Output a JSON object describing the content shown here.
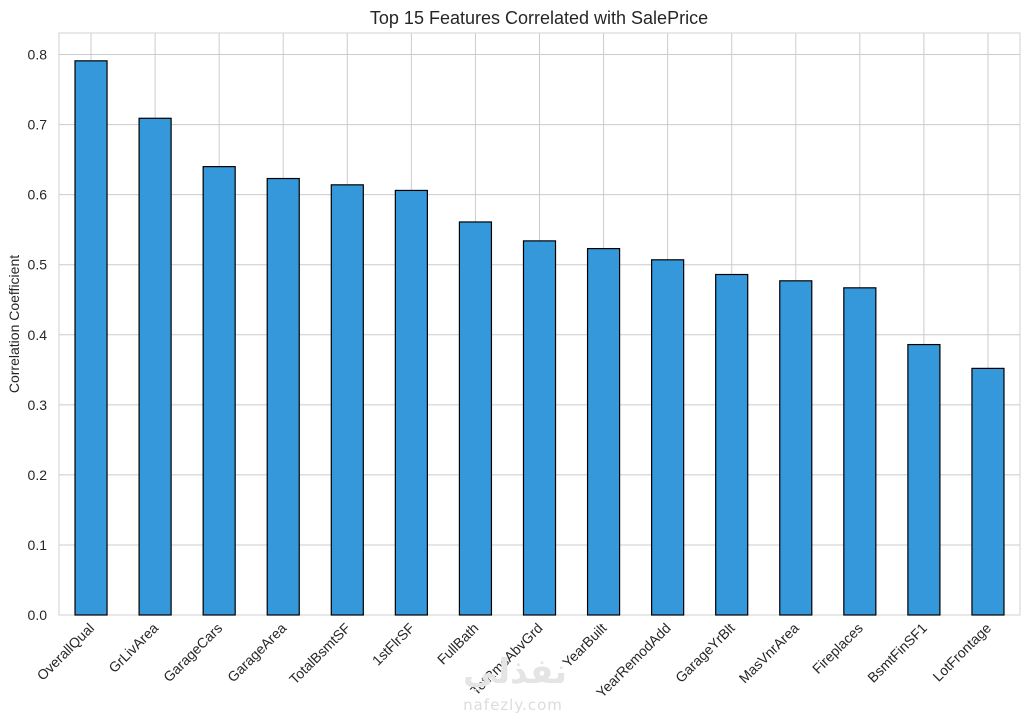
{
  "chart_data": {
    "type": "bar",
    "title": "Top 15 Features Correlated with SalePrice",
    "xlabel": "",
    "ylabel": "Correlation Coefficient",
    "ylim": [
      0,
      0.83
    ],
    "yticks": [
      "0.0",
      "0.1",
      "0.2",
      "0.3",
      "0.4",
      "0.5",
      "0.6",
      "0.7",
      "0.8"
    ],
    "grid": true,
    "categories": [
      "OverallQual",
      "GrLivArea",
      "GarageCars",
      "GarageArea",
      "TotalBsmtSF",
      "1stFlrSF",
      "FullBath",
      "TotRmsAbvGrd",
      "YearBuilt",
      "YearRemodAdd",
      "GarageYrBlt",
      "MasVnrArea",
      "Fireplaces",
      "BsmtFinSF1",
      "LotFrontage"
    ],
    "values": [
      0.791,
      0.709,
      0.64,
      0.623,
      0.614,
      0.606,
      0.561,
      0.534,
      0.523,
      0.507,
      0.486,
      0.477,
      0.467,
      0.386,
      0.352
    ],
    "colors": {
      "bar": "#3498db",
      "edge": "#000000",
      "grid": "#cccccc",
      "text": "#262626"
    }
  },
  "watermark": {
    "arabic": "نفذلي",
    "latin": "nafezly.com"
  }
}
